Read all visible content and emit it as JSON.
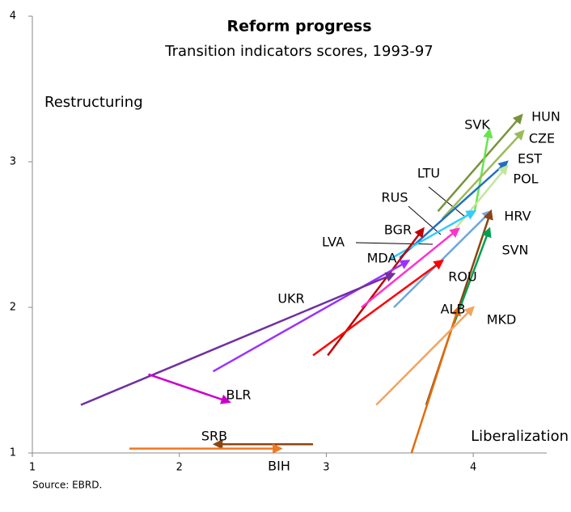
{
  "chart_data": {
    "type": "arrow",
    "title": "Reform progress",
    "subtitle": "Transition indicators  scores, 1993-97",
    "x_label": "Liberalization",
    "y_label": "Restructuring",
    "source": "Source: EBRD.",
    "xlim": [
      1,
      4.5
    ],
    "ylim": [
      1,
      4
    ],
    "xticks": [
      1,
      2,
      3,
      4
    ],
    "yticks": [
      1,
      2,
      3,
      4
    ],
    "series": [
      {
        "name": "HUN",
        "color": "#77933c",
        "x": [
          3.76,
          4.33
        ],
        "y": [
          2.66,
          3.32
        ]
      },
      {
        "name": "SVK",
        "color": "#66e64d",
        "x": [
          4.01,
          4.11
        ],
        "y": [
          2.66,
          3.22
        ]
      },
      {
        "name": "CZE",
        "color": "#9bbb59",
        "x": [
          3.79,
          4.34
        ],
        "y": [
          2.61,
          3.21
        ]
      },
      {
        "name": "EST",
        "color": "#1f6fc4",
        "x": [
          3.5,
          4.23
        ],
        "y": [
          2.34,
          3.0
        ]
      },
      {
        "name": "POL",
        "color": "#c3e6a0",
        "x": [
          3.87,
          4.23
        ],
        "y": [
          2.53,
          2.97
        ]
      },
      {
        "name": "LTU",
        "color": "#33ccff",
        "x": [
          3.43,
          4.01
        ],
        "y": [
          2.33,
          2.66
        ]
      },
      {
        "name": "RUS",
        "color": "#6fa8dc",
        "x": [
          3.46,
          4.12
        ],
        "y": [
          2.0,
          2.66
        ]
      },
      {
        "name": "HRV",
        "color": "#8b4513",
        "x": [
          3.68,
          4.12
        ],
        "y": [
          1.33,
          2.66
        ]
      },
      {
        "name": "BGR",
        "color": "#c00000",
        "x": [
          3.01,
          3.66
        ],
        "y": [
          1.67,
          2.54
        ]
      },
      {
        "name": "LVA",
        "color": "#ff33cc",
        "x": [
          3.24,
          3.9
        ],
        "y": [
          2.0,
          2.54
        ]
      },
      {
        "name": "MDA",
        "color": "#9933ff",
        "x": [
          2.23,
          3.56
        ],
        "y": [
          1.56,
          2.32
        ]
      },
      {
        "name": "SVN",
        "color": "#00a050",
        "x": [
          3.87,
          4.11
        ],
        "y": [
          1.89,
          2.54
        ]
      },
      {
        "name": "UKR",
        "color": "#7030a0",
        "x": [
          1.33,
          3.46
        ],
        "y": [
          1.33,
          2.23
        ]
      },
      {
        "name": "ROU",
        "color": "#ff0000",
        "x": [
          2.91,
          3.79
        ],
        "y": [
          1.67,
          2.32
        ]
      },
      {
        "name": "ALB",
        "color": "#e36c0a",
        "x": [
          3.58,
          3.9
        ],
        "y": [
          1.0,
          2.0
        ]
      },
      {
        "name": "MKD",
        "color": "#f4a460",
        "x": [
          3.34,
          4.0
        ],
        "y": [
          1.33,
          2.0
        ]
      },
      {
        "name": "BLR",
        "color": "#cc00cc",
        "x": [
          1.79,
          2.34
        ],
        "y": [
          1.54,
          1.35
        ]
      },
      {
        "name": "SRB",
        "color": "#8b4513",
        "x": [
          2.91,
          2.24
        ],
        "y": [
          1.06,
          1.06
        ]
      },
      {
        "name": "BIH",
        "color": "#f07820",
        "x": [
          1.66,
          2.69
        ],
        "y": [
          1.03,
          1.03
        ]
      }
    ]
  }
}
